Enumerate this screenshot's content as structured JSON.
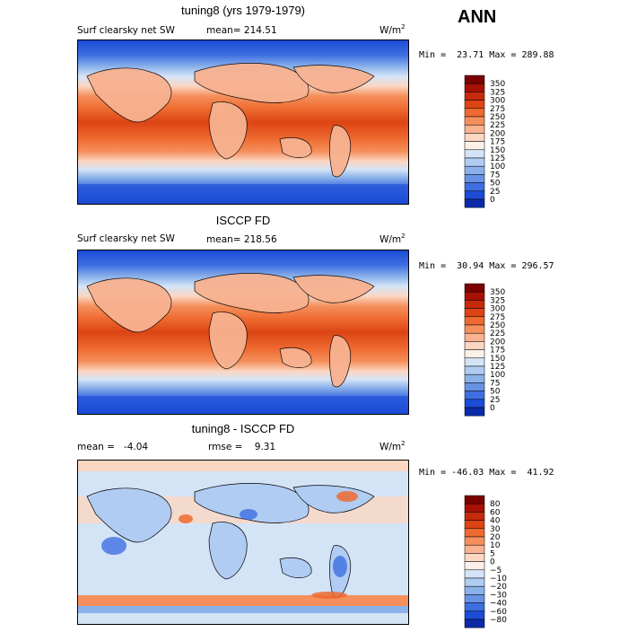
{
  "header": {
    "season": "ANN"
  },
  "panels": [
    {
      "title": "tuning8 (yrs 1979-1979)",
      "variable": "Surf clearsky net SW",
      "stat_left": "mean= 214.51",
      "stat_right": "",
      "units_base": "W/m",
      "units_sup": "2",
      "min_label": "Min =",
      "min_value": "23.71",
      "max_label": "Max =",
      "max_value": "289.88",
      "colorbar": {
        "labels": [
          "350",
          "325",
          "300",
          "275",
          "250",
          "225",
          "200",
          "175",
          "150",
          "125",
          "100",
          "75",
          "50",
          "25",
          "0"
        ],
        "colors": [
          "#7a0000",
          "#a80f05",
          "#c52a0a",
          "#dc4414",
          "#ee6a30",
          "#f5905c",
          "#f8b290",
          "#fbd6c2",
          "#fdf0e8",
          "#d4e4f7",
          "#b0ccf2",
          "#8bb1ea",
          "#6793e6",
          "#3e6fe1",
          "#1c4bd6",
          "#0b2aa8"
        ]
      }
    },
    {
      "title": "ISCCP FD",
      "variable": "Surf clearsky net SW",
      "stat_left": "mean= 218.56",
      "stat_right": "",
      "units_base": "W/m",
      "units_sup": "2",
      "min_label": "Min =",
      "min_value": "30.94",
      "max_label": "Max =",
      "max_value": "296.57",
      "colorbar": {
        "labels": [
          "350",
          "325",
          "300",
          "275",
          "250",
          "225",
          "200",
          "175",
          "150",
          "125",
          "100",
          "75",
          "50",
          "25",
          "0"
        ],
        "colors": [
          "#7a0000",
          "#a80f05",
          "#c52a0a",
          "#dc4414",
          "#ee6a30",
          "#f5905c",
          "#f8b290",
          "#fbd6c2",
          "#fdf0e8",
          "#d4e4f7",
          "#b0ccf2",
          "#8bb1ea",
          "#6793e6",
          "#3e6fe1",
          "#1c4bd6",
          "#0b2aa8"
        ]
      }
    },
    {
      "title": "tuning8 - ISCCP FD",
      "variable": "mean =   -4.04",
      "stat_left": "",
      "stat_right": "rmse =    9.31",
      "units_base": "W/m",
      "units_sup": "2",
      "min_label": "Min =",
      "min_value": "-46.03",
      "max_label": "Max =",
      "max_value": "41.92",
      "colorbar": {
        "labels": [
          "80",
          "60",
          "40",
          "30",
          "20",
          "10",
          "5",
          "0",
          "−5",
          "−10",
          "−20",
          "−30",
          "−40",
          "−60",
          "−80"
        ],
        "colors": [
          "#7a0000",
          "#a80f05",
          "#c52a0a",
          "#dc4414",
          "#ee6a30",
          "#f5905c",
          "#f8b290",
          "#fbd6c2",
          "#fdf0e8",
          "#d4e4f7",
          "#b0ccf2",
          "#8bb1ea",
          "#6793e6",
          "#3e6fe1",
          "#1c4bd6",
          "#0b2aa8"
        ]
      }
    }
  ],
  "chart_data": [
    {
      "type": "heatmap",
      "title": "tuning8 (yrs 1979-1979)",
      "subtitle": "Surf clearsky net SW",
      "mean": 214.51,
      "min": 23.71,
      "max": 289.88,
      "units": "W/m2",
      "levels": [
        0,
        25,
        50,
        75,
        100,
        125,
        150,
        175,
        200,
        225,
        250,
        275,
        300,
        325,
        350
      ],
      "zonal_profile": [
        {
          "lat": 90,
          "value": 40
        },
        {
          "lat": 70,
          "value": 75
        },
        {
          "lat": 50,
          "value": 150
        },
        {
          "lat": 30,
          "value": 235
        },
        {
          "lat": 15,
          "value": 265
        },
        {
          "lat": 0,
          "value": 270
        },
        {
          "lat": -15,
          "value": 265
        },
        {
          "lat": -30,
          "value": 235
        },
        {
          "lat": -50,
          "value": 150
        },
        {
          "lat": -65,
          "value": 80
        },
        {
          "lat": -90,
          "value": 35
        }
      ]
    },
    {
      "type": "heatmap",
      "title": "ISCCP FD",
      "subtitle": "Surf clearsky net SW",
      "mean": 218.56,
      "min": 30.94,
      "max": 296.57,
      "units": "W/m2",
      "levels": [
        0,
        25,
        50,
        75,
        100,
        125,
        150,
        175,
        200,
        225,
        250,
        275,
        300,
        325,
        350
      ],
      "zonal_profile": [
        {
          "lat": 90,
          "value": 45
        },
        {
          "lat": 70,
          "value": 80
        },
        {
          "lat": 50,
          "value": 155
        },
        {
          "lat": 30,
          "value": 240
        },
        {
          "lat": 15,
          "value": 270
        },
        {
          "lat": 0,
          "value": 275
        },
        {
          "lat": -15,
          "value": 270
        },
        {
          "lat": -30,
          "value": 240
        },
        {
          "lat": -50,
          "value": 155
        },
        {
          "lat": -65,
          "value": 85
        },
        {
          "lat": -90,
          "value": 40
        }
      ]
    },
    {
      "type": "heatmap",
      "title": "tuning8 - ISCCP FD",
      "mean": -4.04,
      "rmse": 9.31,
      "min": -46.03,
      "max": 41.92,
      "units": "W/m2",
      "levels": [
        -80,
        -60,
        -40,
        -30,
        -20,
        -10,
        -5,
        0,
        5,
        10,
        20,
        30,
        40,
        60,
        80
      ],
      "zonal_profile": [
        {
          "lat": 90,
          "value": 5
        },
        {
          "lat": 70,
          "value": -8
        },
        {
          "lat": 50,
          "value": 3
        },
        {
          "lat": 30,
          "value": -5
        },
        {
          "lat": 15,
          "value": -6
        },
        {
          "lat": 0,
          "value": -4
        },
        {
          "lat": -15,
          "value": -5
        },
        {
          "lat": -30,
          "value": -6
        },
        {
          "lat": -50,
          "value": -2
        },
        {
          "lat": -65,
          "value": 20
        },
        {
          "lat": -90,
          "value": -3
        }
      ]
    }
  ]
}
